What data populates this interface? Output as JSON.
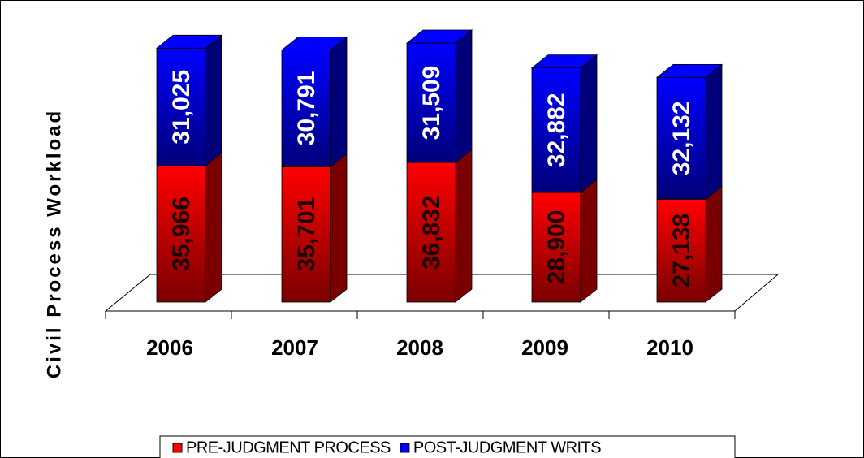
{
  "chart_data": {
    "type": "bar3d_stacked",
    "y_label": "Civil Process Workload",
    "categories": [
      "2006",
      "2007",
      "2008",
      "2009",
      "2010"
    ],
    "series": [
      {
        "name": "PRE-JUDGMENT PROCESS",
        "color": "#ff0000",
        "side_color": "#7a0000",
        "label_color": "#1a0000",
        "values": [
          35966,
          35701,
          36832,
          28900,
          27138
        ],
        "value_labels": [
          "35,966",
          "35,701",
          "36,832",
          "28,900",
          "27,138"
        ]
      },
      {
        "name": "POST-JUDGMENT WRITS",
        "color": "#0000ff",
        "side_color": "#00007a",
        "label_color": "#ffffff",
        "values": [
          31025,
          30791,
          31509,
          32882,
          32132
        ],
        "value_labels": [
          "31,025",
          "30,791",
          "31,509",
          "32,882",
          "32,132"
        ]
      }
    ]
  }
}
